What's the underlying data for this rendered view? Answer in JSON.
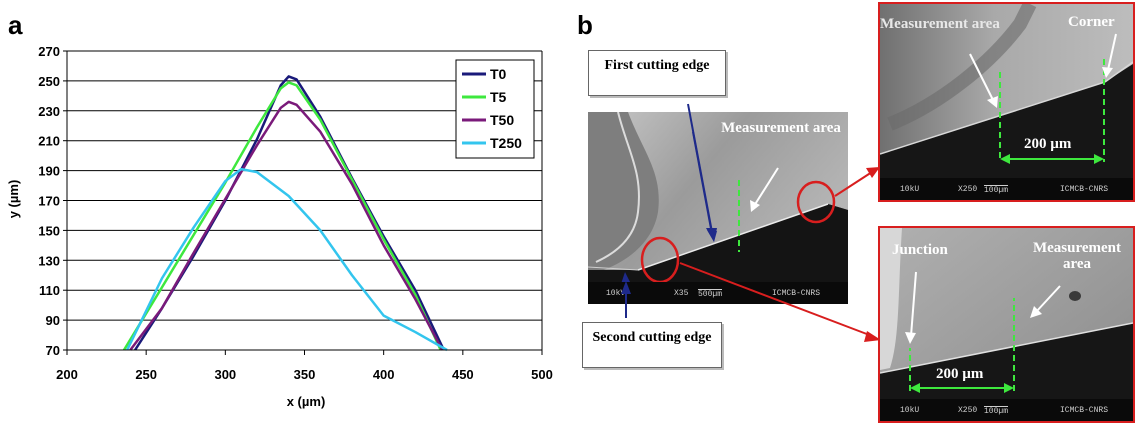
{
  "panel_a": {
    "letter": "a"
  },
  "panel_b": {
    "letter": "b",
    "main_sem": {
      "measurement_area": "Measurement area",
      "bar": {
        "kv": "10kV",
        "mag": "X35",
        "scale": "500µm",
        "lab": "ICMCB-CNRS"
      }
    },
    "callouts": {
      "first_cutting_edge": "First cutting edge",
      "second_cutting_edge": "Second cutting edge"
    },
    "inset_corner": {
      "measurement_area": "Measurement area",
      "corner": "Corner",
      "scale_label": "200 µm",
      "bar": {
        "kv": "10kU",
        "mag": "X250",
        "scale": "100µm",
        "lab": "ICMCB-CNRS"
      }
    },
    "inset_junction": {
      "junction": "Junction",
      "measurement_area": "Measurement area",
      "scale_label": "200 µm",
      "bar": {
        "kv": "10kU",
        "mag": "X250",
        "scale": "100µm",
        "lab": "ICMCB-CNRS"
      }
    }
  },
  "colors": {
    "T0": "#1a1a7a",
    "T5": "#3ee83e",
    "T50": "#7a1a7a",
    "T250": "#33c5ee",
    "highlight_red": "#d81e1e",
    "dash_green": "#3ee83e"
  },
  "chart_data": {
    "type": "line",
    "title": "",
    "xlabel": "x (µm)",
    "ylabel": "y (µm)",
    "xlim": [
      200,
      500
    ],
    "ylim": [
      70,
      270
    ],
    "xticks": [
      200,
      250,
      300,
      350,
      400,
      450,
      500
    ],
    "yticks": [
      70,
      90,
      110,
      130,
      150,
      170,
      190,
      210,
      230,
      250,
      270
    ],
    "grid": "horizontal",
    "legend_position": "top-right",
    "series": [
      {
        "name": "T0",
        "x": [
          243,
          260,
          280,
          300,
          320,
          335,
          340,
          345,
          360,
          380,
          400,
          420,
          438
        ],
        "y": [
          70,
          98,
          133,
          170,
          211,
          247,
          253,
          251,
          226,
          185,
          146,
          110,
          70
        ]
      },
      {
        "name": "T5",
        "x": [
          236,
          260,
          280,
          300,
          320,
          335,
          340,
          345,
          360,
          380,
          400,
          420,
          436
        ],
        "y": [
          70,
          112,
          147,
          182,
          219,
          245,
          249,
          247,
          224,
          184,
          144,
          107,
          70
        ]
      },
      {
        "name": "T50",
        "x": [
          240,
          260,
          280,
          300,
          320,
          335,
          340,
          345,
          360,
          380,
          400,
          420,
          437
        ],
        "y": [
          70,
          98,
          135,
          171,
          207,
          232,
          236,
          234,
          216,
          181,
          140,
          104,
          70
        ]
      },
      {
        "name": "T250",
        "x": [
          238,
          260,
          280,
          300,
          310,
          320,
          340,
          360,
          380,
          400,
          420,
          440
        ],
        "y": [
          70,
          118,
          152,
          183,
          191,
          189,
          173,
          150,
          120,
          93,
          82,
          70
        ]
      }
    ]
  }
}
